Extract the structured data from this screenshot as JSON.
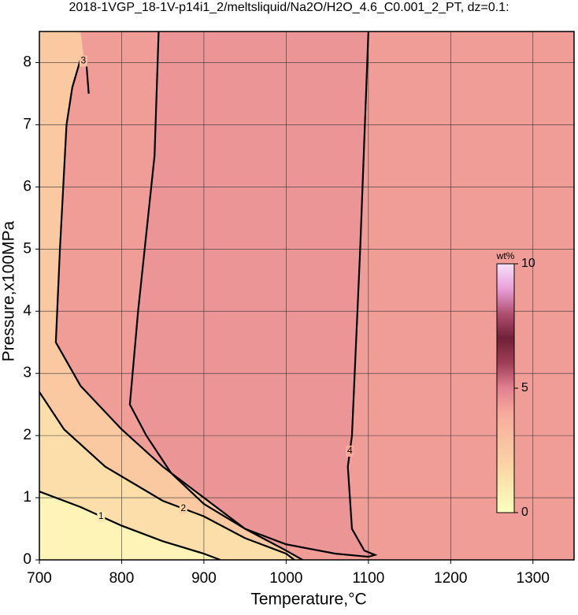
{
  "chart_data": {
    "type": "contour",
    "title": "2018-1VGP_18-1V-p14i1_2/meltsliquid/Na2O/H2O_4.6_C0.001_2_PT, dz=0.1:",
    "x_label": "Temperature,°C",
    "y_label": "Pressure,x100MPa",
    "xlim": [
      700,
      1350
    ],
    "ylim": [
      0,
      8.5
    ],
    "xticks": [
      700,
      800,
      900,
      1000,
      1100,
      1200,
      1300
    ],
    "yticks": [
      0,
      1,
      2,
      3,
      4,
      5,
      6,
      7,
      8
    ],
    "grid": true,
    "colorbar": {
      "label": "wt%",
      "clim": [
        0,
        10
      ],
      "ticks": [
        0,
        5,
        10
      ],
      "colors": [
        "#ffffbf",
        "#fde9b0",
        "#fbd2a4",
        "#f8bfa0",
        "#f7aa9c",
        "#e08090",
        "#a04058",
        "#702038",
        "#b05070",
        "#e8a0d8",
        "#f8e0f8"
      ]
    },
    "contours": [
      {
        "level": 4,
        "x": [
          1100,
          1090,
          1080,
          1075,
          1080,
          1095,
          1108,
          1100,
          1060,
          1000,
          950,
          900,
          860,
          830,
          810,
          820,
          840,
          845
        ],
        "y": [
          8.5,
          5,
          2,
          1.5,
          0.5,
          0.15,
          0.08,
          0.05,
          0.1,
          0.25,
          0.5,
          0.9,
          1.4,
          2,
          2.5,
          4,
          6.5,
          8.5
        ]
      },
      {
        "level": 3,
        "x": [
          760,
          757,
          750,
          740,
          733,
          725,
          720,
          750,
          800,
          850,
          900,
          950,
          1000,
          1020
        ],
        "y": [
          7.5,
          8.0,
          8.05,
          7.6,
          7,
          5,
          3.5,
          2.8,
          2.1,
          1.5,
          1.0,
          0.5,
          0.15,
          0
        ]
      },
      {
        "level": 2,
        "x": [
          700,
          730,
          780,
          850,
          900,
          950,
          1000,
          1010
        ],
        "y": [
          2.7,
          2.1,
          1.5,
          0.95,
          0.7,
          0.35,
          0.1,
          0
        ]
      },
      {
        "level": 1,
        "x": [
          700,
          750,
          800,
          850,
          900,
          920
        ],
        "y": [
          1.1,
          0.85,
          0.55,
          0.3,
          0.1,
          0
        ]
      }
    ]
  }
}
